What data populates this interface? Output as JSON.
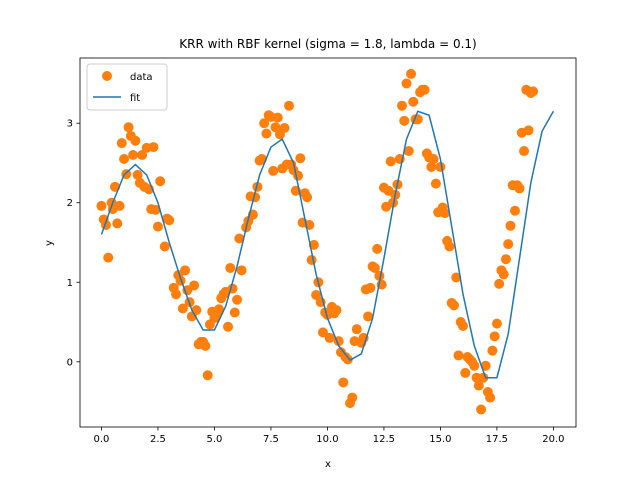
{
  "chart_data": {
    "type": "scatter",
    "title": "KRR with RBF kernel (sigma = 1.8, lambda = 0.1)",
    "xlabel": "x",
    "ylabel": "y",
    "xlim": [
      -0.95,
      21.0
    ],
    "ylim": [
      -0.82,
      3.82
    ],
    "xticks": [
      0.0,
      2.5,
      5.0,
      7.5,
      10.0,
      12.5,
      15.0,
      17.5,
      20.0
    ],
    "xtick_labels": [
      "0.0",
      "2.5",
      "5.0",
      "7.5",
      "10.0",
      "12.5",
      "15.0",
      "17.5",
      "20.0"
    ],
    "yticks": [
      0,
      1,
      2,
      3
    ],
    "ytick_labels": [
      "0",
      "1",
      "2",
      "3"
    ],
    "grid": false,
    "legend_position": "top-left",
    "series": [
      {
        "name": "data",
        "kind": "scatter",
        "color": "#ff7f0e",
        "points": [
          [
            0.0,
            1.96
          ],
          [
            0.1,
            1.79
          ],
          [
            0.2,
            1.72
          ],
          [
            0.3,
            1.31
          ],
          [
            0.45,
            2.0
          ],
          [
            0.5,
            1.92
          ],
          [
            0.6,
            2.2
          ],
          [
            0.7,
            1.74
          ],
          [
            0.8,
            1.96
          ],
          [
            0.9,
            2.75
          ],
          [
            1.0,
            2.55
          ],
          [
            1.1,
            2.36
          ],
          [
            1.2,
            2.95
          ],
          [
            1.3,
            2.84
          ],
          [
            1.4,
            2.6
          ],
          [
            1.5,
            2.78
          ],
          [
            1.6,
            2.35
          ],
          [
            1.7,
            2.25
          ],
          [
            1.8,
            2.6
          ],
          [
            1.9,
            2.2
          ],
          [
            2.0,
            2.69
          ],
          [
            2.1,
            2.17
          ],
          [
            2.2,
            1.92
          ],
          [
            2.3,
            2.7
          ],
          [
            2.4,
            1.91
          ],
          [
            2.5,
            1.7
          ],
          [
            2.6,
            2.27
          ],
          [
            2.8,
            1.45
          ],
          [
            2.9,
            1.8
          ],
          [
            3.0,
            1.78
          ],
          [
            3.2,
            0.93
          ],
          [
            3.3,
            0.85
          ],
          [
            3.4,
            1.09
          ],
          [
            3.5,
            1.02
          ],
          [
            3.6,
            0.67
          ],
          [
            3.7,
            1.15
          ],
          [
            3.8,
            0.9
          ],
          [
            3.9,
            0.75
          ],
          [
            4.0,
            0.57
          ],
          [
            4.1,
            0.96
          ],
          [
            4.2,
            0.65
          ],
          [
            4.3,
            0.22
          ],
          [
            4.4,
            0.25
          ],
          [
            4.5,
            0.25
          ],
          [
            4.6,
            0.2
          ],
          [
            4.7,
            -0.17
          ],
          [
            4.8,
            0.47
          ],
          [
            4.9,
            0.63
          ],
          [
            5.0,
            0.55
          ],
          [
            5.1,
            0.6
          ],
          [
            5.2,
            0.66
          ],
          [
            5.3,
            0.8
          ],
          [
            5.4,
            0.85
          ],
          [
            5.5,
            0.88
          ],
          [
            5.6,
            0.44
          ],
          [
            5.7,
            1.18
          ],
          [
            5.8,
            0.92
          ],
          [
            5.9,
            0.62
          ],
          [
            6.0,
            0.78
          ],
          [
            6.1,
            1.55
          ],
          [
            6.2,
            1.15
          ],
          [
            6.4,
            1.69
          ],
          [
            6.5,
            1.77
          ],
          [
            6.6,
            2.08
          ],
          [
            6.7,
            1.85
          ],
          [
            6.8,
            2.07
          ],
          [
            6.9,
            2.2
          ],
          [
            7.0,
            2.53
          ],
          [
            7.1,
            2.55
          ],
          [
            7.2,
            3.0
          ],
          [
            7.3,
            2.87
          ],
          [
            7.4,
            3.1
          ],
          [
            7.5,
            3.08
          ],
          [
            7.6,
            2.4
          ],
          [
            7.7,
            2.95
          ],
          [
            7.8,
            3.07
          ],
          [
            7.9,
            2.86
          ],
          [
            8.0,
            2.43
          ],
          [
            8.1,
            2.94
          ],
          [
            8.2,
            2.48
          ],
          [
            8.3,
            3.22
          ],
          [
            8.4,
            2.48
          ],
          [
            8.5,
            2.41
          ],
          [
            8.6,
            2.15
          ],
          [
            8.7,
            2.34
          ],
          [
            8.8,
            2.56
          ],
          [
            8.9,
            1.75
          ],
          [
            9.0,
            2.12
          ],
          [
            9.1,
            2.07
          ],
          [
            9.2,
            1.72
          ],
          [
            9.3,
            1.28
          ],
          [
            9.4,
            1.47
          ],
          [
            9.5,
            0.84
          ],
          [
            9.6,
            1.0
          ],
          [
            9.7,
            0.75
          ],
          [
            9.8,
            0.37
          ],
          [
            9.9,
            0.62
          ],
          [
            10.0,
            0.59
          ],
          [
            10.1,
            0.3
          ],
          [
            10.2,
            0.69
          ],
          [
            10.3,
            0.61
          ],
          [
            10.4,
            0.65
          ],
          [
            10.5,
            0.26
          ],
          [
            10.6,
            0.12
          ],
          [
            10.7,
            -0.26
          ],
          [
            10.8,
            0.06
          ],
          [
            10.9,
            0.03
          ],
          [
            11.0,
            -0.52
          ],
          [
            11.1,
            -0.45
          ],
          [
            11.2,
            0.26
          ],
          [
            11.3,
            0.41
          ],
          [
            11.5,
            0.24
          ],
          [
            11.6,
            0.3
          ],
          [
            11.7,
            0.91
          ],
          [
            11.8,
            0.57
          ],
          [
            11.9,
            0.93
          ],
          [
            12.0,
            1.2
          ],
          [
            12.1,
            1.18
          ],
          [
            12.2,
            1.42
          ],
          [
            12.3,
            1.08
          ],
          [
            12.4,
            0.97
          ],
          [
            12.5,
            2.19
          ],
          [
            12.6,
            1.95
          ],
          [
            12.7,
            2.15
          ],
          [
            12.8,
            2.52
          ],
          [
            12.9,
            2.0
          ],
          [
            13.0,
            2.1
          ],
          [
            13.1,
            2.23
          ],
          [
            13.2,
            2.55
          ],
          [
            13.3,
            3.22
          ],
          [
            13.4,
            3.03
          ],
          [
            13.5,
            3.5
          ],
          [
            13.6,
            2.65
          ],
          [
            13.7,
            3.62
          ],
          [
            13.8,
            3.27
          ],
          [
            13.9,
            3.05
          ],
          [
            14.0,
            3.05
          ],
          [
            14.1,
            3.39
          ],
          [
            14.2,
            3.42
          ],
          [
            14.3,
            3.42
          ],
          [
            14.4,
            2.62
          ],
          [
            14.5,
            2.57
          ],
          [
            14.6,
            2.45
          ],
          [
            14.7,
            2.55
          ],
          [
            14.8,
            2.24
          ],
          [
            14.9,
            1.88
          ],
          [
            15.0,
            2.45
          ],
          [
            15.1,
            1.94
          ],
          [
            15.2,
            1.87
          ],
          [
            15.3,
            1.52
          ],
          [
            15.4,
            1.45
          ],
          [
            15.5,
            0.74
          ],
          [
            15.6,
            0.71
          ],
          [
            15.7,
            1.06
          ],
          [
            15.8,
            0.08
          ],
          [
            15.9,
            0.5
          ],
          [
            16.0,
            0.45
          ],
          [
            16.1,
            -0.14
          ],
          [
            16.2,
            0.06
          ],
          [
            16.3,
            0.03
          ],
          [
            16.4,
            0.0
          ],
          [
            16.5,
            -0.05
          ],
          [
            16.6,
            -0.2
          ],
          [
            16.7,
            -0.3
          ],
          [
            16.8,
            -0.6
          ],
          [
            16.9,
            -0.2
          ],
          [
            17.0,
            -0.05
          ],
          [
            17.1,
            -0.38
          ],
          [
            17.2,
            -0.45
          ],
          [
            17.3,
            0.14
          ],
          [
            17.4,
            0.32
          ],
          [
            17.5,
            0.48
          ],
          [
            17.6,
            0.98
          ],
          [
            17.7,
            1.15
          ],
          [
            17.8,
            1.1
          ],
          [
            17.9,
            1.29
          ],
          [
            18.0,
            1.48
          ],
          [
            18.1,
            1.71
          ],
          [
            18.2,
            2.22
          ],
          [
            18.3,
            1.9
          ],
          [
            18.4,
            2.22
          ],
          [
            18.5,
            2.18
          ],
          [
            18.6,
            2.88
          ],
          [
            18.7,
            2.65
          ],
          [
            18.8,
            3.42
          ],
          [
            18.9,
            2.91
          ],
          [
            19.0,
            3.38
          ],
          [
            19.1,
            3.4
          ]
        ]
      },
      {
        "name": "fit",
        "kind": "line",
        "color": "#1f77b4",
        "points": [
          [
            0.0,
            1.6
          ],
          [
            0.5,
            2.0
          ],
          [
            1.0,
            2.35
          ],
          [
            1.5,
            2.48
          ],
          [
            2.0,
            2.35
          ],
          [
            2.5,
            2.0
          ],
          [
            3.0,
            1.5
          ],
          [
            3.5,
            1.05
          ],
          [
            4.0,
            0.65
          ],
          [
            4.5,
            0.4
          ],
          [
            5.0,
            0.4
          ],
          [
            5.5,
            0.7
          ],
          [
            6.0,
            1.2
          ],
          [
            6.5,
            1.8
          ],
          [
            7.0,
            2.35
          ],
          [
            7.5,
            2.7
          ],
          [
            8.0,
            2.8
          ],
          [
            8.5,
            2.5
          ],
          [
            9.0,
            1.8
          ],
          [
            9.5,
            1.1
          ],
          [
            10.0,
            0.55
          ],
          [
            10.5,
            0.2
          ],
          [
            11.0,
            0.02
          ],
          [
            11.5,
            0.1
          ],
          [
            12.0,
            0.55
          ],
          [
            12.5,
            1.3
          ],
          [
            13.0,
            2.1
          ],
          [
            13.5,
            2.8
          ],
          [
            14.0,
            3.15
          ],
          [
            14.5,
            3.1
          ],
          [
            15.0,
            2.55
          ],
          [
            15.5,
            1.7
          ],
          [
            16.0,
            0.85
          ],
          [
            16.5,
            0.2
          ],
          [
            17.0,
            -0.2
          ],
          [
            17.5,
            -0.2
          ],
          [
            18.0,
            0.35
          ],
          [
            18.5,
            1.3
          ],
          [
            19.0,
            2.25
          ],
          [
            19.5,
            2.9
          ],
          [
            20.0,
            3.15
          ]
        ]
      }
    ]
  }
}
